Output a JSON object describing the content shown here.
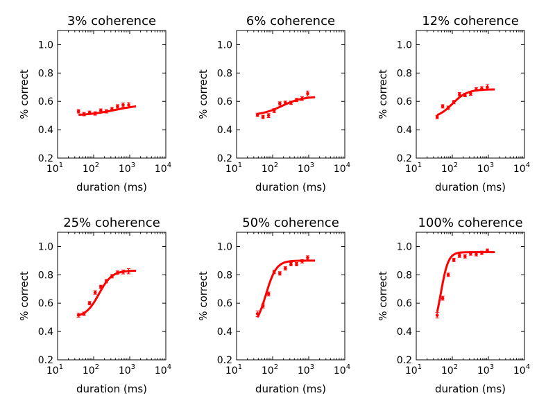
{
  "figure": {
    "marker_color": "#ff0000",
    "fit_color": "#ff0000",
    "tick_sup_font": "small"
  },
  "chart_data": [
    {
      "type": "scatter",
      "title": "3% coherence",
      "xlabel": "duration (ms)",
      "ylabel": "% correct",
      "xscale": "log",
      "xlim": [
        10,
        10000
      ],
      "ylim": [
        0.2,
        1.1
      ],
      "xticks": [
        {
          "base": "10",
          "exp": "1"
        },
        {
          "base": "10",
          "exp": "2"
        },
        {
          "base": "10",
          "exp": "3"
        },
        {
          "base": "10",
          "exp": "4"
        }
      ],
      "yticks": [
        "0.2",
        "0.4",
        "0.6",
        "0.8",
        "1.0"
      ],
      "grid": false,
      "series": [
        {
          "x": [
            38,
            54,
            77,
            110,
            158,
            225,
            322,
            460,
            655,
            935
          ],
          "y": [
            0.53,
            0.51,
            0.52,
            0.515,
            0.535,
            0.53,
            0.545,
            0.565,
            0.575,
            0.575
          ],
          "yerr": [
            0.012,
            0.012,
            0.012,
            0.012,
            0.012,
            0.012,
            0.012,
            0.012,
            0.014,
            0.016
          ]
        },
        {
          "kind": "fit",
          "lower": 0.5,
          "upper": 0.58,
          "midpoint": 400,
          "slope": 1.1,
          "xmin": 38,
          "xmax": 1500
        }
      ]
    },
    {
      "type": "scatter",
      "title": "6% coherence",
      "xlabel": "duration (ms)",
      "ylabel": "% correct",
      "xscale": "log",
      "xlim": [
        10,
        10000
      ],
      "ylim": [
        0.2,
        1.1
      ],
      "xticks": [
        {
          "base": "10",
          "exp": "1"
        },
        {
          "base": "10",
          "exp": "2"
        },
        {
          "base": "10",
          "exp": "3"
        },
        {
          "base": "10",
          "exp": "4"
        }
      ],
      "yticks": [
        "0.2",
        "0.4",
        "0.6",
        "0.8",
        "1.0"
      ],
      "grid": false,
      "series": [
        {
          "x": [
            38,
            54,
            77,
            110,
            158,
            225,
            322,
            460,
            655,
            935
          ],
          "y": [
            0.505,
            0.49,
            0.5,
            0.535,
            0.585,
            0.59,
            0.59,
            0.61,
            0.62,
            0.655
          ],
          "yerr": [
            0.012,
            0.012,
            0.014,
            0.014,
            0.012,
            0.012,
            0.012,
            0.012,
            0.014,
            0.018
          ]
        },
        {
          "kind": "fit",
          "lower": 0.5,
          "upper": 0.635,
          "midpoint": 180,
          "slope": 1.5,
          "xmin": 38,
          "xmax": 1500
        }
      ]
    },
    {
      "type": "scatter",
      "title": "12% coherence",
      "xlabel": "duration (ms)",
      "ylabel": "% correct",
      "xscale": "log",
      "xlim": [
        10,
        10000
      ],
      "ylim": [
        0.2,
        1.1
      ],
      "xticks": [
        {
          "base": "10",
          "exp": "1"
        },
        {
          "base": "10",
          "exp": "2"
        },
        {
          "base": "10",
          "exp": "3"
        },
        {
          "base": "10",
          "exp": "4"
        }
      ],
      "yticks": [
        "0.2",
        "0.4",
        "0.6",
        "0.8",
        "1.0"
      ],
      "grid": false,
      "series": [
        {
          "x": [
            38,
            54,
            77,
            110,
            158,
            225,
            322,
            460,
            655,
            935
          ],
          "y": [
            0.49,
            0.565,
            0.555,
            0.595,
            0.65,
            0.645,
            0.655,
            0.685,
            0.69,
            0.7
          ],
          "yerr": [
            0.012,
            0.012,
            0.012,
            0.012,
            0.012,
            0.012,
            0.012,
            0.012,
            0.014,
            0.018
          ]
        },
        {
          "kind": "fit",
          "lower": 0.48,
          "upper": 0.685,
          "midpoint": 100,
          "slope": 2.1,
          "xmin": 38,
          "xmax": 1500
        }
      ]
    },
    {
      "type": "scatter",
      "title": "25% coherence",
      "xlabel": "duration (ms)",
      "ylabel": "% correct",
      "xscale": "log",
      "xlim": [
        10,
        10000
      ],
      "ylim": [
        0.2,
        1.1
      ],
      "xticks": [
        {
          "base": "10",
          "exp": "1"
        },
        {
          "base": "10",
          "exp": "2"
        },
        {
          "base": "10",
          "exp": "3"
        },
        {
          "base": "10",
          "exp": "4"
        }
      ],
      "yticks": [
        "0.2",
        "0.4",
        "0.6",
        "0.8",
        "1.0"
      ],
      "grid": false,
      "series": [
        {
          "x": [
            38,
            54,
            77,
            110,
            158,
            225,
            322,
            460,
            655,
            935
          ],
          "y": [
            0.515,
            0.525,
            0.6,
            0.675,
            0.715,
            0.755,
            0.79,
            0.815,
            0.82,
            0.825
          ],
          "yerr": [
            0.014,
            0.012,
            0.012,
            0.012,
            0.012,
            0.012,
            0.012,
            0.012,
            0.014,
            0.018
          ]
        },
        {
          "kind": "fit",
          "lower": 0.5,
          "upper": 0.83,
          "midpoint": 140,
          "slope": 2.4,
          "xmin": 38,
          "xmax": 1500
        }
      ]
    },
    {
      "type": "scatter",
      "title": "50% coherence",
      "xlabel": "duration (ms)",
      "ylabel": "% correct",
      "xscale": "log",
      "xlim": [
        10,
        10000
      ],
      "ylim": [
        0.2,
        1.1
      ],
      "xticks": [
        {
          "base": "10",
          "exp": "1"
        },
        {
          "base": "10",
          "exp": "2"
        },
        {
          "base": "10",
          "exp": "3"
        },
        {
          "base": "10",
          "exp": "4"
        }
      ],
      "yticks": [
        "0.2",
        "0.4",
        "0.6",
        "0.8",
        "1.0"
      ],
      "grid": false,
      "series": [
        {
          "x": [
            38,
            54,
            77,
            110,
            158,
            225,
            322,
            460,
            655,
            935
          ],
          "y": [
            0.525,
            0.58,
            0.665,
            0.82,
            0.81,
            0.845,
            0.875,
            0.875,
            0.895,
            0.92
          ],
          "yerr": [
            0.02,
            0.014,
            0.014,
            0.012,
            0.012,
            0.012,
            0.012,
            0.012,
            0.012,
            0.014
          ]
        },
        {
          "kind": "fit",
          "lower": 0.42,
          "upper": 0.9,
          "midpoint": 65,
          "slope": 3.0,
          "xmin": 38,
          "xmax": 1500
        }
      ]
    },
    {
      "type": "scatter",
      "title": "100% coherence",
      "xlabel": "duration (ms)",
      "ylabel": "% correct",
      "xscale": "log",
      "xlim": [
        10,
        10000
      ],
      "ylim": [
        0.2,
        1.1
      ],
      "xticks": [
        {
          "base": "10",
          "exp": "1"
        },
        {
          "base": "10",
          "exp": "2"
        },
        {
          "base": "10",
          "exp": "3"
        },
        {
          "base": "10",
          "exp": "4"
        }
      ],
      "yticks": [
        "0.2",
        "0.4",
        "0.6",
        "0.8",
        "1.0"
      ],
      "grid": false,
      "series": [
        {
          "x": [
            38,
            54,
            77,
            110,
            158,
            225,
            322,
            460,
            655,
            935
          ],
          "y": [
            0.515,
            0.635,
            0.8,
            0.905,
            0.935,
            0.93,
            0.95,
            0.945,
            0.955,
            0.97
          ],
          "yerr": [
            0.02,
            0.014,
            0.012,
            0.012,
            0.012,
            0.012,
            0.012,
            0.012,
            0.012,
            0.012
          ]
        },
        {
          "kind": "fit",
          "lower": 0.38,
          "upper": 0.96,
          "midpoint": 48,
          "slope": 4.2,
          "xmin": 38,
          "xmax": 1500
        }
      ]
    }
  ]
}
